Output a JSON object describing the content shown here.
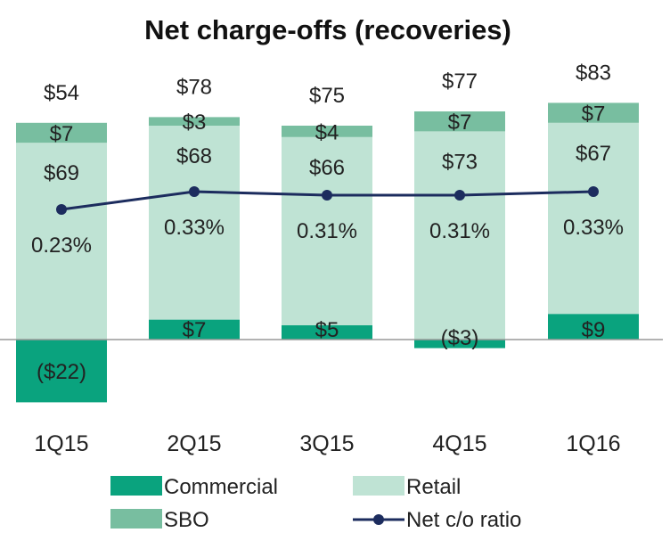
{
  "chart_data": {
    "type": "bar",
    "title": "Net charge-offs (recoveries)",
    "categories": [
      "1Q15",
      "2Q15",
      "3Q15",
      "4Q15",
      "1Q16"
    ],
    "series": [
      {
        "name": "Commercial",
        "color": "#0aa37e",
        "values": [
          -22,
          7,
          5,
          -3,
          9
        ],
        "labels": [
          "($22)",
          "$7",
          "$5",
          "($3)",
          "$9"
        ]
      },
      {
        "name": "Retail",
        "color": "#bfe3d4",
        "values": [
          69,
          68,
          66,
          73,
          67
        ],
        "labels": [
          "$69",
          "$68",
          "$66",
          "$73",
          "$67"
        ]
      },
      {
        "name": "SBO",
        "color": "#78bea0",
        "values": [
          7,
          3,
          4,
          7,
          7
        ],
        "labels": [
          "$7",
          "$3",
          "$4",
          "$7",
          "$7"
        ]
      }
    ],
    "totals": {
      "values": [
        54,
        78,
        75,
        77,
        83
      ],
      "labels": [
        "$54",
        "$78",
        "$75",
        "$77",
        "$83"
      ]
    },
    "line_series": {
      "name": "Net c/o ratio",
      "color": "#1c2c5e",
      "values": [
        0.23,
        0.33,
        0.31,
        0.31,
        0.33
      ],
      "labels": [
        "0.23%",
        "0.33%",
        "0.31%",
        "0.31%",
        "0.33%"
      ]
    },
    "legend": [
      "Commercial",
      "Retail",
      "SBO",
      "Net c/o ratio"
    ],
    "legend_position": "bottom",
    "stacked": true,
    "grid": false
  }
}
